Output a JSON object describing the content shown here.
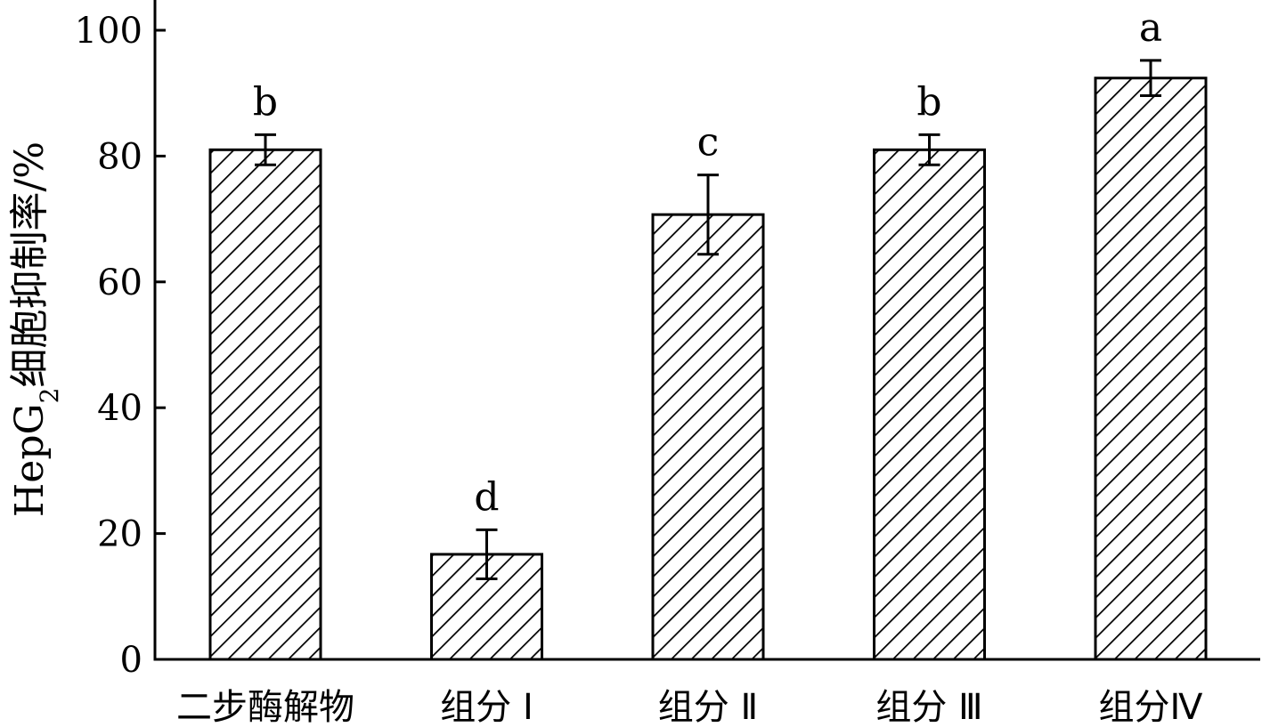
{
  "chart_data": {
    "type": "bar",
    "title": "",
    "xlabel": "",
    "ylabel": {
      "main": "HepG",
      "sub": "2",
      "rest": "细胞抑制率/%"
    },
    "ylim": [
      0,
      100
    ],
    "yticks": [
      0,
      20,
      40,
      60,
      80,
      100
    ],
    "categories": [
      "二步酶解物",
      "组分 Ⅰ",
      "组分 Ⅱ",
      "组分 Ⅲ",
      "组分Ⅳ"
    ],
    "values": [
      81,
      16.7,
      70.7,
      81,
      92.4
    ],
    "error_low": [
      2.4,
      3.9,
      6.3,
      2.4,
      2.8
    ],
    "error_high": [
      2.4,
      3.9,
      6.3,
      2.4,
      2.8
    ],
    "significance": [
      "b",
      "d",
      "c",
      "b",
      "a"
    ],
    "bar_fill": "hatched",
    "grid": false,
    "legend": "none",
    "colors": {
      "stroke": "#000000",
      "background": "#ffffff"
    }
  }
}
